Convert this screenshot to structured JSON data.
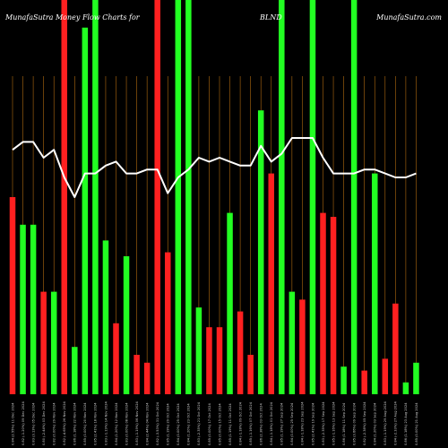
{
  "header": {
    "left": "MunafaSutra  Money Flow  Charts for",
    "ticker": "BLND",
    "right": "MunafaSutra.com"
  },
  "colors": {
    "background": "#000000",
    "up": "#22ff22",
    "down": "#ff2020",
    "line": "#ffffff",
    "grid": "#b06a10"
  },
  "chart_data": {
    "type": "bar",
    "title": "",
    "xlabel": "",
    "ylabel": "",
    "ylim": [
      0,
      100
    ],
    "series": [
      {
        "values": [
          50,
          43,
          43,
          26,
          26,
          100,
          12,
          93,
          100,
          39,
          18,
          35,
          10,
          8,
          100,
          36,
          100,
          100,
          22,
          17,
          17,
          46,
          21,
          10,
          72,
          56,
          100,
          26,
          24,
          100,
          46,
          45,
          7,
          100,
          6,
          56,
          9,
          23,
          3,
          8
        ],
        "direction": [
          "down",
          "up",
          "up",
          "down",
          "up",
          "down",
          "up",
          "up",
          "up",
          "up",
          "down",
          "up",
          "down",
          "down",
          "down",
          "down",
          "up",
          "up",
          "up",
          "down",
          "down",
          "up",
          "down",
          "down",
          "up",
          "down",
          "up",
          "up",
          "down",
          "up",
          "down",
          "down",
          "up",
          "up",
          "down",
          "up",
          "down",
          "down",
          "up",
          "up"
        ]
      },
      {
        "type": "line",
        "values": [
          62,
          64,
          64,
          60,
          62,
          55,
          50,
          56,
          56,
          58,
          59,
          56,
          56,
          57,
          57,
          51,
          55,
          57,
          60,
          59,
          60,
          59,
          58,
          58,
          63,
          59,
          61,
          65,
          65,
          65,
          60,
          56,
          56,
          56,
          57,
          57,
          56,
          55,
          55,
          56
        ]
      }
    ],
    "categories": [
      "Tue 17 Dec 2024",
      "Mon 16 Dec 2024",
      "Fri 13 Dec 2024",
      "Thu 12 Dec 2024",
      "Wed 11 Dec 2024",
      "Tue 10 Dec 2024",
      "Mon 09 Dec 2024",
      "Fri 06 Dec 2024",
      "Thu 05 Dec 2024",
      "Wed 04 Dec 2024",
      "Tue 03 Dec 2024",
      "Mon 02 Dec 2024",
      "Fri 29 Nov 2024",
      "Wed 27 Nov 2024",
      "Tue 26 Nov 2024",
      "Mon 25 Nov 2024",
      "Fri 22 Nov 2024",
      "Thu 21 Nov 2024",
      "Wed 20 Nov 2024",
      "Tue 19 Nov 2024",
      "Mon 18 Nov 2024",
      "Fri 15 Nov 2024",
      "Thu 14 Nov 2024",
      "Wed 13 Nov 2024",
      "Tue 12 Nov 2024",
      "Mon 11 Nov 2024",
      "Fri 08 Nov 2024",
      "Thu 07 Nov 2024",
      "Wed 06 Nov 2024",
      "Tue 05 Nov 2024",
      "Mon 04 Nov 2024",
      "Fri 01 Nov 2024",
      "Thu 31 Oct 2024",
      "Wed 30 Oct 2024",
      "Tue 29 Oct 2024",
      "Mon 28 Oct 2024",
      "Fri 25 Oct 2024",
      "Thu 24 Oct 2024",
      "Wed 23 Oct 2024",
      "Tue 22 Oct 2024"
    ],
    "tick_labels": [
      "0.84 (2.55%) 11 Dec 2024",
      "0.82 (-1.20%) 09 Dec 2024",
      "0.83 (3.13%) 05 Dec 2024",
      "0.80 (-2.44%) 03 Dec 2024",
      "0.82 (0.00%) 29 Nov 2024",
      "0.82 (-4.65%) 26 Nov 2024",
      "0.86 (1.18%) 22 Nov 2024",
      "0.85 (0.00%) 20 Nov 2024",
      "0.85 (2.41%) 18 Nov 2024",
      "0.83 (-1.19%) 14 Nov 2024",
      "0.84 (1.20%) 12 Nov 2024",
      "0.83 (0.00%) 08 Nov 2024",
      "0.83 (-1.19%) 06 Nov 2024",
      "0.84 (2.44%) 04 Nov 2024",
      "0.82 (-3.53%) 31 Oct 2024",
      "0.85 (1.19%) 29 Oct 2024",
      "0.84 (0.00%) 25 Oct 2024",
      "0.84 (1.20%) 23 Oct 2024",
      "0.83 (-2.35%) 21 Oct 2024",
      "0.85 (0.00%) 17 Oct 2024",
      "0.85 (0.00%) 15 Oct 2024",
      "0.85 (1.19%) 11 Oct 2024",
      "0.84 (-1.18%) 09 Oct 2024",
      "0.85 (-1.16%) 07 Oct 2024",
      "0.86 (2.38%) 03 Oct 2024",
      "0.84 (-1.18%) 01 Oct 2024",
      "0.85 (1.19%) 27 Sep 2024",
      "0.84 (0.00%) 25 Sep 2024",
      "0.84 (-1.18%) 23 Sep 2024",
      "0.85 (2.41%) 19 Sep 2024",
      "0.83 (-2.35%) 17 Sep 2024",
      "0.85 (-1.16%) 13 Sep 2024",
      "0.86 (1.18%) 11 Sep 2024",
      "0.85 (3.66%) 09 Sep 2024",
      "0.82 (-2.38%) 05 Sep 2024",
      "0.84 (1.20%) 03 Sep 2024",
      "0.83 (-1.19%) 29 Aug 2024",
      "0.84 (-2.33%) 27 Aug 2024",
      "0.86 (1.18%) 23 Aug 2024",
      "0.85 (0.00%) 21 Aug 2024"
    ],
    "grid": true,
    "legend": "none"
  }
}
